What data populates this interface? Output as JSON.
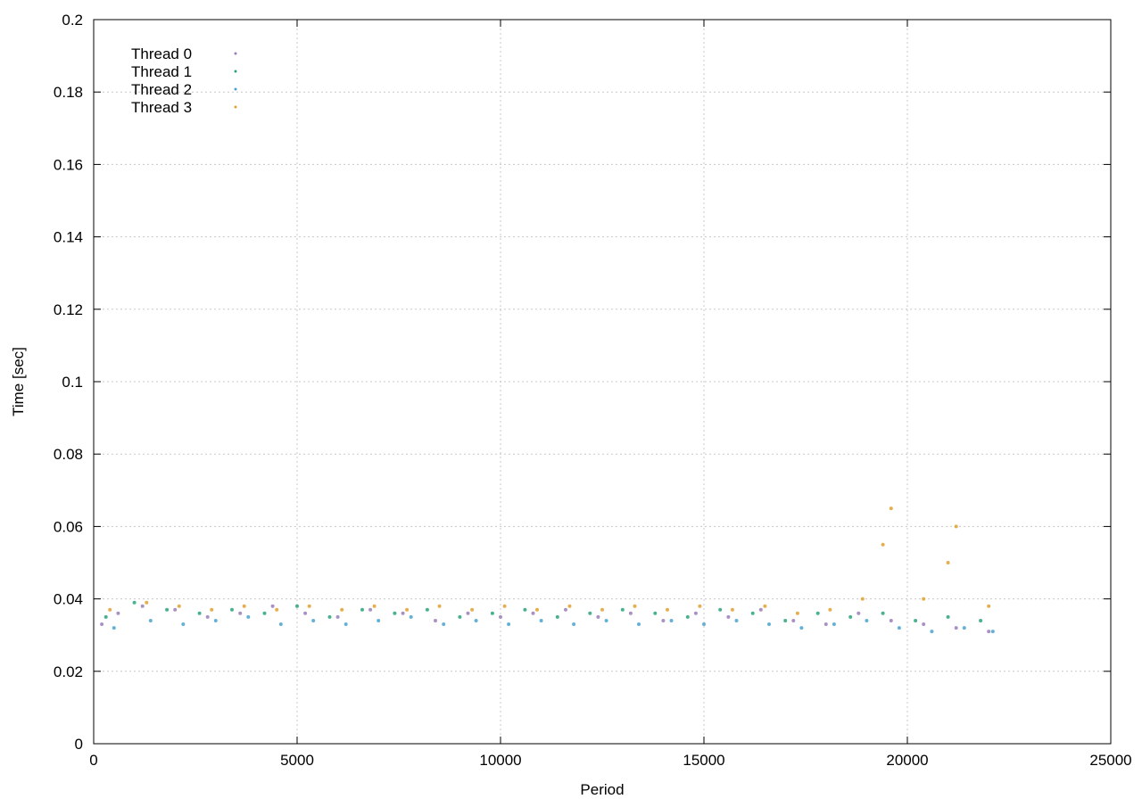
{
  "chart_data": {
    "type": "scatter",
    "title": "",
    "xlabel": "Period",
    "ylabel": "Time [sec]",
    "xlim": [
      0,
      25000
    ],
    "ylim": [
      0,
      0.2
    ],
    "xticks": [
      "0",
      "5000",
      "10000",
      "15000",
      "20000",
      "25000"
    ],
    "yticks": [
      "0",
      "0.02",
      "0.04",
      "0.06",
      "0.08",
      "0.1",
      "0.12",
      "0.14",
      "0.16",
      "0.18",
      "0.2"
    ],
    "xtick_values": [
      0,
      5000,
      10000,
      15000,
      20000,
      25000
    ],
    "ytick_values": [
      0,
      0.02,
      0.04,
      0.06,
      0.08,
      0.1,
      0.12,
      0.14,
      0.16,
      0.18,
      0.2
    ],
    "grid": true,
    "legend_position": "top-left",
    "series": [
      {
        "name": "Thread 0",
        "color": "#9a7fb8",
        "points": [
          [
            200,
            0.033
          ],
          [
            600,
            0.036
          ],
          [
            1200,
            0.038
          ],
          [
            2000,
            0.037
          ],
          [
            2800,
            0.035
          ],
          [
            3600,
            0.036
          ],
          [
            4400,
            0.038
          ],
          [
            5200,
            0.036
          ],
          [
            6000,
            0.035
          ],
          [
            6800,
            0.037
          ],
          [
            7600,
            0.036
          ],
          [
            8400,
            0.034
          ],
          [
            9200,
            0.036
          ],
          [
            10000,
            0.035
          ],
          [
            10800,
            0.036
          ],
          [
            11600,
            0.037
          ],
          [
            12400,
            0.035
          ],
          [
            13200,
            0.036
          ],
          [
            14000,
            0.034
          ],
          [
            14800,
            0.036
          ],
          [
            15600,
            0.035
          ],
          [
            16400,
            0.037
          ],
          [
            17200,
            0.034
          ],
          [
            18000,
            0.033
          ],
          [
            18800,
            0.036
          ],
          [
            19600,
            0.034
          ],
          [
            20400,
            0.033
          ],
          [
            21200,
            0.032
          ],
          [
            22000,
            0.031
          ]
        ]
      },
      {
        "name": "Thread 1",
        "color": "#2aa37a",
        "points": [
          [
            300,
            0.035
          ],
          [
            1000,
            0.039
          ],
          [
            1800,
            0.037
          ],
          [
            2600,
            0.036
          ],
          [
            3400,
            0.037
          ],
          [
            4200,
            0.036
          ],
          [
            5000,
            0.038
          ],
          [
            5800,
            0.035
          ],
          [
            6600,
            0.037
          ],
          [
            7400,
            0.036
          ],
          [
            8200,
            0.037
          ],
          [
            9000,
            0.035
          ],
          [
            9800,
            0.036
          ],
          [
            10600,
            0.037
          ],
          [
            11400,
            0.035
          ],
          [
            12200,
            0.036
          ],
          [
            13000,
            0.037
          ],
          [
            13800,
            0.036
          ],
          [
            14600,
            0.035
          ],
          [
            15400,
            0.037
          ],
          [
            16200,
            0.036
          ],
          [
            17000,
            0.034
          ],
          [
            17800,
            0.036
          ],
          [
            18600,
            0.035
          ],
          [
            19400,
            0.036
          ],
          [
            20200,
            0.034
          ],
          [
            21000,
            0.035
          ],
          [
            21800,
            0.034
          ]
        ]
      },
      {
        "name": "Thread 2",
        "color": "#4aa3cf",
        "points": [
          [
            500,
            0.032
          ],
          [
            1400,
            0.034
          ],
          [
            2200,
            0.033
          ],
          [
            3000,
            0.034
          ],
          [
            3800,
            0.035
          ],
          [
            4600,
            0.033
          ],
          [
            5400,
            0.034
          ],
          [
            6200,
            0.033
          ],
          [
            7000,
            0.034
          ],
          [
            7800,
            0.035
          ],
          [
            8600,
            0.033
          ],
          [
            9400,
            0.034
          ],
          [
            10200,
            0.033
          ],
          [
            11000,
            0.034
          ],
          [
            11800,
            0.033
          ],
          [
            12600,
            0.034
          ],
          [
            13400,
            0.033
          ],
          [
            14200,
            0.034
          ],
          [
            15000,
            0.033
          ],
          [
            15800,
            0.034
          ],
          [
            16600,
            0.033
          ],
          [
            17400,
            0.032
          ],
          [
            18200,
            0.033
          ],
          [
            19000,
            0.034
          ],
          [
            19800,
            0.032
          ],
          [
            20600,
            0.031
          ],
          [
            21400,
            0.032
          ],
          [
            22100,
            0.031
          ]
        ]
      },
      {
        "name": "Thread 3",
        "color": "#e0a030",
        "points": [
          [
            400,
            0.037
          ],
          [
            1300,
            0.039
          ],
          [
            2100,
            0.038
          ],
          [
            2900,
            0.037
          ],
          [
            3700,
            0.038
          ],
          [
            4500,
            0.037
          ],
          [
            5300,
            0.038
          ],
          [
            6100,
            0.037
          ],
          [
            6900,
            0.038
          ],
          [
            7700,
            0.037
          ],
          [
            8500,
            0.038
          ],
          [
            9300,
            0.037
          ],
          [
            10100,
            0.038
          ],
          [
            10900,
            0.037
          ],
          [
            11700,
            0.038
          ],
          [
            12500,
            0.037
          ],
          [
            13300,
            0.038
          ],
          [
            14100,
            0.037
          ],
          [
            14900,
            0.038
          ],
          [
            15700,
            0.037
          ],
          [
            16500,
            0.038
          ],
          [
            17300,
            0.036
          ],
          [
            18100,
            0.037
          ],
          [
            18900,
            0.04
          ],
          [
            19400,
            0.055
          ],
          [
            19600,
            0.065
          ],
          [
            20400,
            0.04
          ],
          [
            21000,
            0.05
          ],
          [
            21200,
            0.06
          ],
          [
            22000,
            0.038
          ]
        ]
      }
    ]
  }
}
